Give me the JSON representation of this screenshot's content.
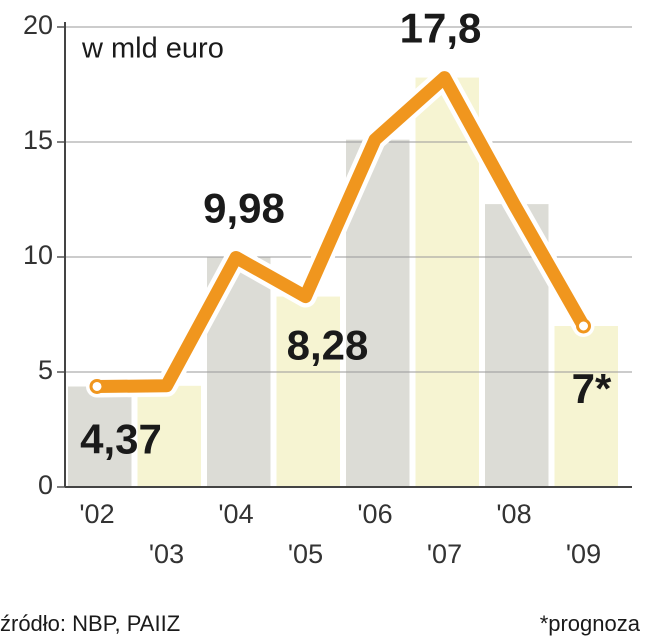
{
  "chart_data": {
    "type": "line",
    "unit_label": "w mld euro",
    "categories": [
      "'02",
      "'03",
      "'04",
      "'05",
      "'06",
      "'07",
      "'08",
      "'09"
    ],
    "values": [
      4.37,
      4.4,
      9.98,
      8.28,
      15.1,
      17.8,
      12.3,
      7
    ],
    "value_labels": [
      "4,37",
      null,
      "9,98",
      "8,28",
      null,
      "17,8",
      null,
      "7*"
    ],
    "color": "#f0961e",
    "bar_colors": [
      "#dcdcd6",
      "#f6f4d2"
    ],
    "ylim": [
      0,
      20
    ],
    "yticks": [
      0,
      5,
      10,
      15,
      20
    ],
    "grid": true,
    "source": "źródło: NBP, PAIIZ",
    "footnote": "*prognoza"
  }
}
